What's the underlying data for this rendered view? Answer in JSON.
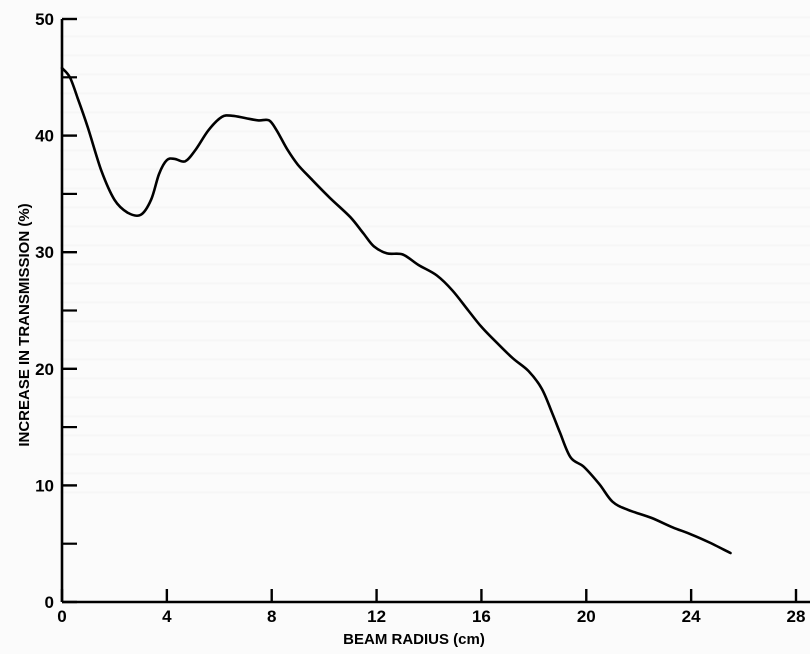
{
  "chart_data": {
    "type": "line",
    "title": "",
    "xlabel": "BEAM RADIUS (cm)",
    "ylabel": "INCREASE IN TRANSMISSION (%)",
    "xlim": [
      0,
      28
    ],
    "ylim": [
      0,
      50
    ],
    "x_ticks": [
      0,
      4,
      8,
      12,
      16,
      20,
      24,
      28
    ],
    "y_ticks": [
      0,
      10,
      20,
      30,
      40,
      50
    ],
    "x_tick_labels": [
      "0",
      "4",
      "8",
      "12",
      "16",
      "20",
      "24",
      "28"
    ],
    "y_tick_labels": [
      "0",
      "10",
      "20",
      "30",
      "40",
      "50"
    ],
    "y_minor_ticks": [
      5,
      15,
      25,
      35,
      45
    ],
    "grid": false,
    "line_color": "#000000",
    "series": [
      {
        "x": [
          0.0,
          0.3,
          0.6,
          1.0,
          1.5,
          2.0,
          2.5,
          3.0,
          3.4,
          3.7,
          4.0,
          4.3,
          4.7,
          5.1,
          5.6,
          6.1,
          6.5,
          7.0,
          7.5,
          7.9,
          8.2,
          8.6,
          9.0,
          9.5,
          10.2,
          11.0,
          11.5,
          11.9,
          12.4,
          13.0,
          13.6,
          14.3,
          14.9,
          15.5,
          16.0,
          16.6,
          17.2,
          17.8,
          18.3,
          18.7,
          19.0,
          19.4,
          19.9,
          20.5,
          21.0,
          21.6,
          22.5,
          23.3,
          24.0,
          24.7,
          25.5
        ],
        "y": [
          45.8,
          45.0,
          43.2,
          40.6,
          37.0,
          34.5,
          33.4,
          33.2,
          34.5,
          36.7,
          37.9,
          38.0,
          37.8,
          38.8,
          40.5,
          41.6,
          41.7,
          41.5,
          41.3,
          41.3,
          40.4,
          38.8,
          37.5,
          36.3,
          34.7,
          33.0,
          31.6,
          30.5,
          29.9,
          29.8,
          28.9,
          28.0,
          26.7,
          25.0,
          23.6,
          22.2,
          20.9,
          19.8,
          18.3,
          16.2,
          14.5,
          12.4,
          11.6,
          10.1,
          8.6,
          7.9,
          7.2,
          6.4,
          5.8,
          5.1,
          4.2
        ]
      }
    ]
  }
}
